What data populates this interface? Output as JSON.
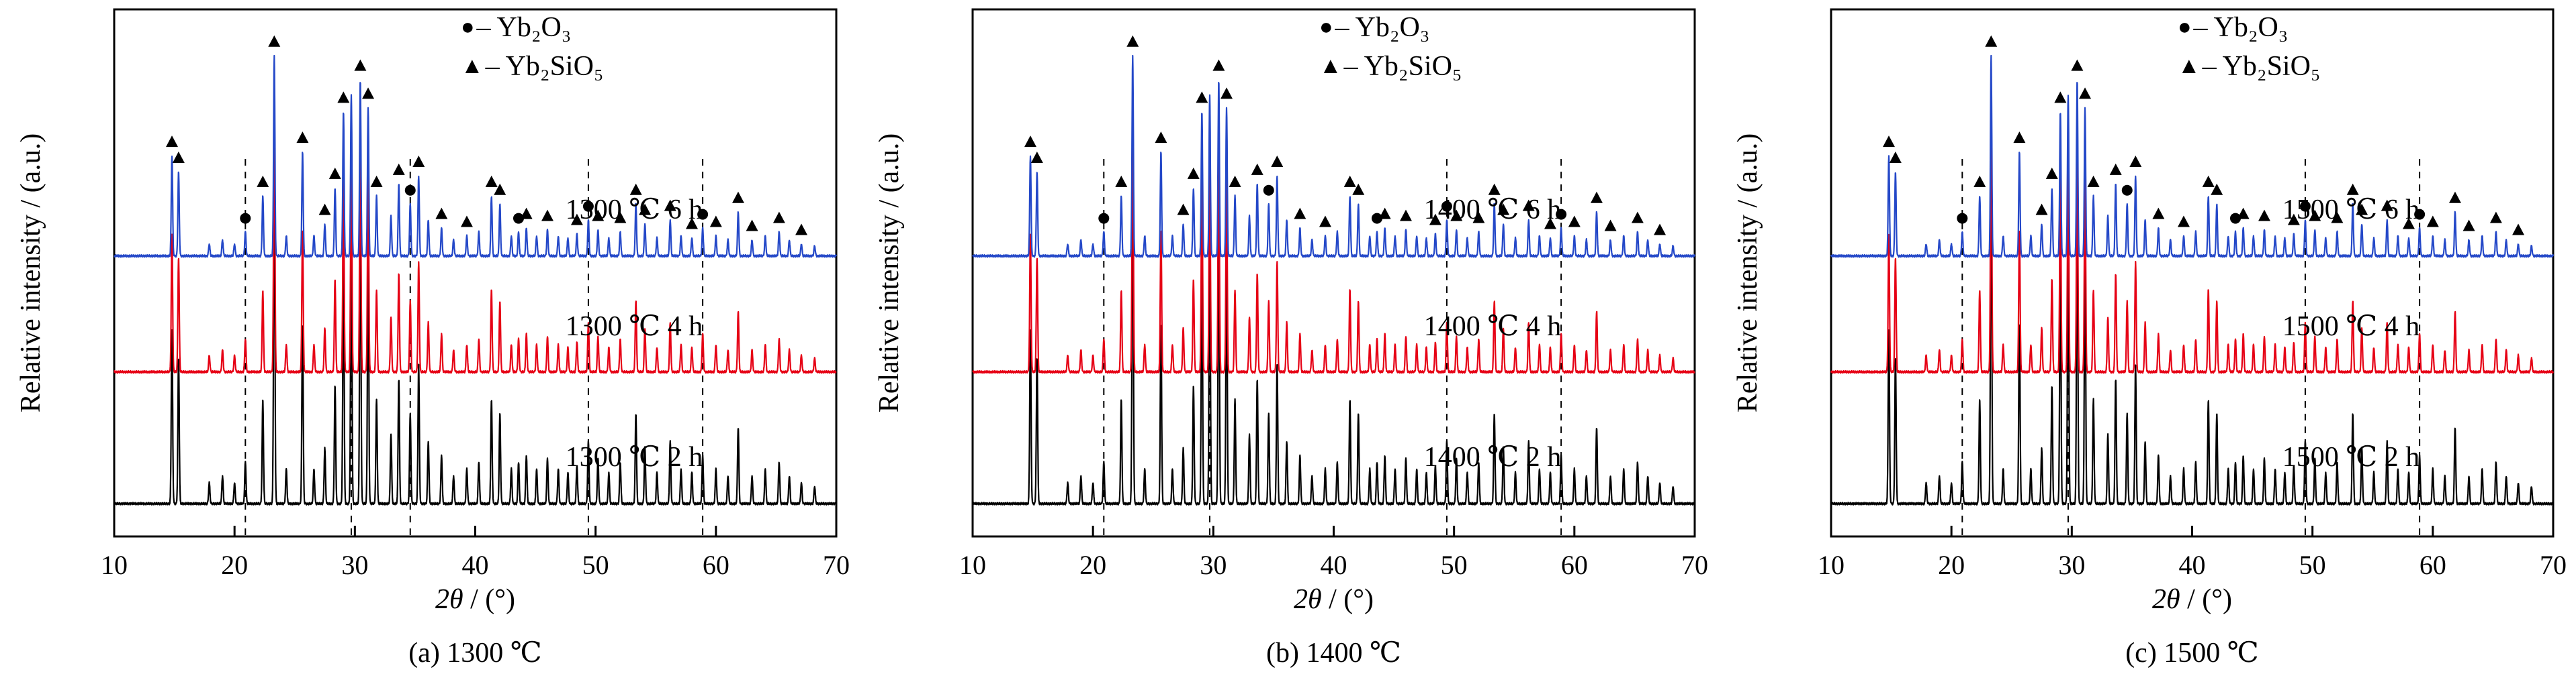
{
  "figure": {
    "background": "#ffffff"
  },
  "chart_data": {
    "type": "line",
    "kind": "xrd-stacked-patterns",
    "xlabel_math": "2θ",
    "xlabel_rest": " / (°)",
    "ylabel": "Relative intensity / (a.u.)",
    "xlim": [
      10,
      70
    ],
    "xticks": [
      10,
      20,
      30,
      40,
      50,
      60,
      70
    ],
    "grid": false,
    "legend_position": "top-right-inside",
    "legend": [
      {
        "marker": "circle",
        "glyph": "●",
        "text": "– Yb₂O₃"
      },
      {
        "marker": "triangle",
        "glyph": "▲",
        "text": "– Yb₂SiO₅"
      }
    ],
    "marker_triangles": [
      14.8,
      15.35,
      22.35,
      23.3,
      25.65,
      27.5,
      28.35,
      29.05,
      30.45,
      31.1,
      31.8,
      33.65,
      35.3,
      37.2,
      39.3,
      41.35,
      42.05,
      44.25,
      46.0,
      48.45,
      50.2,
      52.05,
      53.35,
      54.1,
      56.2,
      58.0,
      60.0,
      61.85,
      63.0,
      65.25,
      67.1
    ],
    "marker_circles": [
      20.9,
      34.6,
      43.6,
      49.4,
      58.9
    ],
    "peaks": [
      [
        14.8,
        0.5
      ],
      [
        15.35,
        0.42
      ],
      [
        17.9,
        0.06
      ],
      [
        19.0,
        0.08
      ],
      [
        20.0,
        0.06
      ],
      [
        20.9,
        0.12
      ],
      [
        22.35,
        0.3
      ],
      [
        23.3,
        1.0
      ],
      [
        24.3,
        0.1
      ],
      [
        25.65,
        0.52
      ],
      [
        26.6,
        0.1
      ],
      [
        27.5,
        0.16
      ],
      [
        28.35,
        0.34
      ],
      [
        29.05,
        0.72
      ],
      [
        29.7,
        0.8
      ],
      [
        30.45,
        0.88
      ],
      [
        31.1,
        0.74
      ],
      [
        31.8,
        0.3
      ],
      [
        33.0,
        0.2
      ],
      [
        33.65,
        0.36
      ],
      [
        34.6,
        0.26
      ],
      [
        35.3,
        0.4
      ],
      [
        36.1,
        0.18
      ],
      [
        37.2,
        0.14
      ],
      [
        38.2,
        0.08
      ],
      [
        39.3,
        0.1
      ],
      [
        40.3,
        0.12
      ],
      [
        41.35,
        0.3
      ],
      [
        42.05,
        0.26
      ],
      [
        43.0,
        0.1
      ],
      [
        43.6,
        0.12
      ],
      [
        44.25,
        0.14
      ],
      [
        45.1,
        0.1
      ],
      [
        46.0,
        0.13
      ],
      [
        46.9,
        0.1
      ],
      [
        47.7,
        0.09
      ],
      [
        48.45,
        0.11
      ],
      [
        49.4,
        0.18
      ],
      [
        50.2,
        0.13
      ],
      [
        51.1,
        0.09
      ],
      [
        52.05,
        0.12
      ],
      [
        53.35,
        0.26
      ],
      [
        54.1,
        0.16
      ],
      [
        55.1,
        0.09
      ],
      [
        56.2,
        0.18
      ],
      [
        57.1,
        0.1
      ],
      [
        58.0,
        0.09
      ],
      [
        58.9,
        0.14
      ],
      [
        60.0,
        0.1
      ],
      [
        61.0,
        0.08
      ],
      [
        61.85,
        0.22
      ],
      [
        63.0,
        0.08
      ],
      [
        64.1,
        0.1
      ],
      [
        65.25,
        0.12
      ],
      [
        66.1,
        0.08
      ],
      [
        67.1,
        0.06
      ],
      [
        68.2,
        0.05
      ]
    ],
    "panels": [
      {
        "caption": "(a) 1300 ℃",
        "dashed_lines": [
          20.9,
          29.7,
          34.6,
          49.4,
          58.9
        ],
        "series": [
          {
            "label": "1300 ℃ 2 h",
            "color": "#000000",
            "offset": 0.06,
            "scale": 0.66
          },
          {
            "label": "1300 ℃ 4 h",
            "color": "#e60014",
            "offset": 0.31,
            "scale": 0.52
          },
          {
            "label": "1300 ℃ 6 h",
            "color": "#2448c8",
            "offset": 0.53,
            "scale": 0.38
          }
        ]
      },
      {
        "caption": "(b) 1400 ℃",
        "dashed_lines": [
          20.9,
          29.7,
          49.4,
          58.9
        ],
        "series": [
          {
            "label": "1400 ℃ 2 h",
            "color": "#000000",
            "offset": 0.06,
            "scale": 0.66
          },
          {
            "label": "1400 ℃ 4 h",
            "color": "#e60014",
            "offset": 0.31,
            "scale": 0.52
          },
          {
            "label": "1400 ℃ 6 h",
            "color": "#2448c8",
            "offset": 0.53,
            "scale": 0.38
          }
        ]
      },
      {
        "caption": "(c) 1500 ℃",
        "dashed_lines": [
          20.9,
          29.7,
          49.4,
          58.9
        ],
        "series": [
          {
            "label": "1500 ℃ 2 h",
            "color": "#000000",
            "offset": 0.06,
            "scale": 0.66
          },
          {
            "label": "1500 ℃ 4 h",
            "color": "#e60014",
            "offset": 0.31,
            "scale": 0.52
          },
          {
            "label": "1500 ℃ 6 h",
            "color": "#2448c8",
            "offset": 0.53,
            "scale": 0.38
          }
        ]
      }
    ]
  }
}
